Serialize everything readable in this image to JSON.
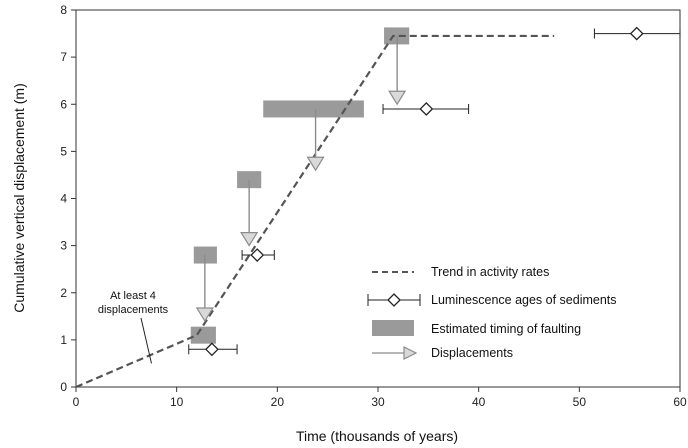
{
  "chart_data": {
    "type": "scatter",
    "title": "",
    "xlabel": "Time (thousands of years)",
    "ylabel": "Cumulative vertical displacement (m)",
    "xlim": [
      0,
      60
    ],
    "ylim": [
      0,
      8
    ],
    "xticks": [
      0,
      10,
      20,
      30,
      40,
      50,
      60
    ],
    "yticks": [
      0,
      1,
      2,
      3,
      4,
      5,
      6,
      7,
      8
    ],
    "grid": false,
    "legend_position": "lower-right",
    "colors": {
      "trend": "#555555",
      "faulting": "#9a9a9a",
      "arrow": "#8c8c8c",
      "arrow_fill": "#d9d9d9",
      "marker": "#222222"
    },
    "trend_line": {
      "name": "Trend in activity rates",
      "x": [
        0,
        12,
        31.5,
        47.5
      ],
      "y": [
        0,
        1.1,
        7.45,
        7.45
      ]
    },
    "luminescence_ages": {
      "name": "Luminescence ages of sediments",
      "points": [
        {
          "x": 13.5,
          "y": 0.8,
          "xerr_low": 11.2,
          "xerr_high": 16.0
        },
        {
          "x": 18.0,
          "y": 2.8,
          "xerr_low": 16.5,
          "xerr_high": 19.7
        },
        {
          "x": 34.8,
          "y": 5.9,
          "xerr_low": 30.5,
          "xerr_high": 39.0
        },
        {
          "x": 55.7,
          "y": 7.5,
          "xerr_low": 51.5,
          "xerr_high": 60.0
        }
      ]
    },
    "faulting_timing": {
      "name": "Estimated timing of faulting",
      "boxes": [
        {
          "x_start": 11.4,
          "x_end": 13.9,
          "y_center": 1.1
        },
        {
          "x_start": 11.7,
          "x_end": 14.0,
          "y_center": 2.8
        },
        {
          "x_start": 16.0,
          "x_end": 18.4,
          "y_center": 4.4
        },
        {
          "x_start": 18.6,
          "x_end": 28.6,
          "y_center": 5.9
        },
        {
          "x_start": 30.6,
          "x_end": 33.1,
          "y_center": 7.45
        }
      ]
    },
    "displacements": {
      "name": "Displacements",
      "arrows": [
        {
          "x": 12.8,
          "y_from": 2.8,
          "y_to": 1.4
        },
        {
          "x": 17.2,
          "y_from": 4.4,
          "y_to": 3.0
        },
        {
          "x": 23.8,
          "y_from": 5.9,
          "y_to": 4.6
        },
        {
          "x": 31.9,
          "y_from": 7.45,
          "y_to": 6.0
        }
      ]
    },
    "annotation": {
      "lines": [
        "At least 4",
        "displacements"
      ],
      "points_to": {
        "x": 7.5,
        "y": 0.5
      }
    }
  }
}
